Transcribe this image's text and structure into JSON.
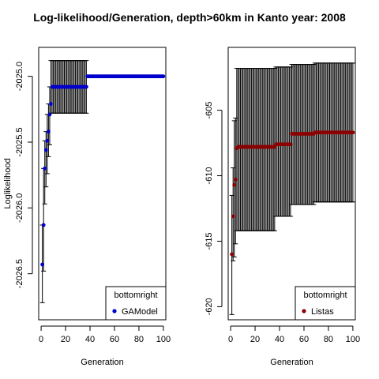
{
  "title": "Log-likelihood/Generation, depth>60km in Kanto year: 2008",
  "chart_data": [
    {
      "type": "scatter",
      "xlabel": "Generation",
      "ylabel": "Loglikelihood",
      "xlim": [
        -2,
        102
      ],
      "ylim": [
        -2026.85,
        -2024.78
      ],
      "xticks": [
        0,
        20,
        40,
        60,
        80,
        100
      ],
      "yticks": [
        -2026.5,
        -2026.0,
        -2025.5,
        -2025.0
      ],
      "ytick_labels": [
        "-2026.5",
        "-2026.0",
        "-2025.5",
        "-2025.0"
      ],
      "legend": {
        "position": "bottomright",
        "title": "bottomright",
        "entries": [
          "GAModel"
        ]
      },
      "series": [
        {
          "name": "GAModel",
          "color": "#0000cd",
          "x": [
            1,
            2,
            3,
            4,
            5,
            6,
            7,
            8,
            9,
            10,
            11,
            12,
            13,
            14,
            15,
            16,
            17,
            18,
            19,
            20,
            21,
            22,
            23,
            24,
            25,
            26,
            27,
            28,
            29,
            30,
            31,
            32,
            33,
            34,
            35,
            36,
            37,
            38,
            39,
            40,
            41,
            42,
            43,
            44,
            45,
            46,
            47,
            48,
            49,
            50,
            51,
            52,
            53,
            54,
            55,
            56,
            57,
            58,
            59,
            60,
            61,
            62,
            63,
            64,
            65,
            66,
            67,
            68,
            69,
            70,
            71,
            72,
            73,
            74,
            75,
            76,
            77,
            78,
            79,
            80,
            81,
            82,
            83,
            84,
            85,
            86,
            87,
            88,
            89,
            90,
            91,
            92,
            93,
            94,
            95,
            96,
            97,
            98,
            99,
            100
          ],
          "y": [
            -2026.43,
            -2026.13,
            -2025.7,
            -2025.56,
            -2025.49,
            -2025.42,
            -2025.29,
            -2025.21,
            -2025.08,
            -2025.08,
            -2025.08,
            -2025.08,
            -2025.08,
            -2025.08,
            -2025.08,
            -2025.08,
            -2025.08,
            -2025.08,
            -2025.08,
            -2025.08,
            -2025.08,
            -2025.08,
            -2025.08,
            -2025.08,
            -2025.08,
            -2025.08,
            -2025.08,
            -2025.08,
            -2025.08,
            -2025.08,
            -2025.08,
            -2025.08,
            -2025.08,
            -2025.08,
            -2025.08,
            -2025.08,
            -2025.08,
            -2025.0,
            -2025.0,
            -2025.0,
            -2025.0,
            -2025.0,
            -2025.0,
            -2025.0,
            -2025.0,
            -2025.0,
            -2025.0,
            -2025.0,
            -2025.0,
            -2025.0,
            -2025.0,
            -2025.0,
            -2025.0,
            -2025.0,
            -2025.0,
            -2025.0,
            -2025.0,
            -2025.0,
            -2025.0,
            -2025.0,
            -2025.0,
            -2025.0,
            -2025.0,
            -2025.0,
            -2025.0,
            -2025.0,
            -2025.0,
            -2025.0,
            -2025.0,
            -2025.0,
            -2025.0,
            -2025.0,
            -2025.0,
            -2025.0,
            -2025.0,
            -2025.0,
            -2025.0,
            -2025.0,
            -2025.0,
            -2025.0,
            -2025.0,
            -2025.0,
            -2025.0,
            -2025.0,
            -2025.0,
            -2025.0,
            -2025.0,
            -2025.0,
            -2025.0,
            -2025.0,
            -2025.0,
            -2025.0,
            -2025.0,
            -2025.0,
            -2025.0,
            -2025.0,
            -2025.0,
            -2025.0,
            -2025.0,
            -2025.0
          ],
          "err_low": [
            -2026.72,
            -2026.48,
            -2025.97,
            -2025.84,
            -2025.74,
            -2025.61,
            -2025.52,
            -2025.28,
            -2025.28,
            -2025.28,
            -2025.28,
            -2025.28,
            -2025.28,
            -2025.28,
            -2025.28,
            -2025.28,
            -2025.28,
            -2025.28,
            -2025.28,
            -2025.28,
            -2025.28,
            -2025.28,
            -2025.28,
            -2025.28,
            -2025.28,
            -2025.28,
            -2025.28,
            -2025.28,
            -2025.28,
            -2025.28,
            -2025.28,
            -2025.28,
            -2025.28,
            -2025.28,
            -2025.28,
            -2025.28,
            -2025.28,
            -2025.0,
            -2025.0,
            -2025.0,
            -2025.0,
            -2025.0,
            -2025.0,
            -2025.0,
            -2025.0,
            -2025.0,
            -2025.0,
            -2025.0,
            -2025.0,
            -2025.0,
            -2025.0,
            -2025.0,
            -2025.0,
            -2025.0,
            -2025.0,
            -2025.0,
            -2025.0,
            -2025.0,
            -2025.0,
            -2025.0,
            -2025.0,
            -2025.0,
            -2025.0,
            -2025.0,
            -2025.0,
            -2025.0,
            -2025.0,
            -2025.0,
            -2025.0,
            -2025.0,
            -2025.0,
            -2025.0,
            -2025.0,
            -2025.0,
            -2025.0,
            -2025.0,
            -2025.0,
            -2025.0,
            -2025.0,
            -2025.0,
            -2025.0,
            -2025.0,
            -2025.0,
            -2025.0,
            -2025.0,
            -2025.0,
            -2025.0,
            -2025.0,
            -2025.0,
            -2025.0,
            -2025.0,
            -2025.0,
            -2025.0,
            -2025.0,
            -2025.0,
            -2025.0,
            -2025.0,
            -2025.0,
            -2025.0,
            -2025.0
          ],
          "err_high": [
            -2026.13,
            -2025.7,
            -2025.49,
            -2025.42,
            -2025.29,
            -2025.21,
            -2025.08,
            -2024.88,
            -2024.88,
            -2024.88,
            -2024.88,
            -2024.88,
            -2024.88,
            -2024.88,
            -2024.88,
            -2024.88,
            -2024.88,
            -2024.88,
            -2024.88,
            -2024.88,
            -2024.88,
            -2024.88,
            -2024.88,
            -2024.88,
            -2024.88,
            -2024.88,
            -2024.88,
            -2024.88,
            -2024.88,
            -2024.88,
            -2024.88,
            -2024.88,
            -2024.88,
            -2024.88,
            -2024.88,
            -2024.88,
            -2024.88,
            -2025.0,
            -2025.0,
            -2025.0,
            -2025.0,
            -2025.0,
            -2025.0,
            -2025.0,
            -2025.0,
            -2025.0,
            -2025.0,
            -2025.0,
            -2025.0,
            -2025.0,
            -2025.0,
            -2025.0,
            -2025.0,
            -2025.0,
            -2025.0,
            -2025.0,
            -2025.0,
            -2025.0,
            -2025.0,
            -2025.0,
            -2025.0,
            -2025.0,
            -2025.0,
            -2025.0,
            -2025.0,
            -2025.0,
            -2025.0,
            -2025.0,
            -2025.0,
            -2025.0,
            -2025.0,
            -2025.0,
            -2025.0,
            -2025.0,
            -2025.0,
            -2025.0,
            -2025.0,
            -2025.0,
            -2025.0,
            -2025.0,
            -2025.0,
            -2025.0,
            -2025.0,
            -2025.0,
            -2025.0,
            -2025.0,
            -2025.0,
            -2025.0,
            -2025.0,
            -2025.0,
            -2025.0,
            -2025.0,
            -2025.0,
            -2025.0,
            -2025.0,
            -2025.0,
            -2025.0,
            -2025.0,
            -2025.0,
            -2025.0
          ]
        }
      ]
    },
    {
      "type": "scatter",
      "xlabel": "Generation",
      "ylabel": "",
      "xlim": [
        -2,
        102
      ],
      "ylim": [
        -621.0,
        -600.2
      ],
      "xticks": [
        0,
        20,
        40,
        60,
        80,
        100
      ],
      "yticks": [
        -620,
        -615,
        -610,
        -605
      ],
      "ytick_labels": [
        "-620",
        "-615",
        "-610",
        "-605"
      ],
      "legend": {
        "position": "bottomright",
        "title": "bottomright",
        "entries": [
          "Listas"
        ]
      },
      "series": [
        {
          "name": "Listas",
          "color": "#8b0000",
          "x": [
            1,
            2,
            3,
            4,
            5,
            6,
            7,
            8,
            9,
            10,
            11,
            12,
            13,
            14,
            15,
            16,
            17,
            18,
            19,
            20,
            21,
            22,
            23,
            24,
            25,
            26,
            27,
            28,
            29,
            30,
            31,
            32,
            33,
            34,
            35,
            36,
            37,
            38,
            39,
            40,
            41,
            42,
            43,
            44,
            45,
            46,
            47,
            48,
            49,
            50,
            51,
            52,
            53,
            54,
            55,
            56,
            57,
            58,
            59,
            60,
            61,
            62,
            63,
            64,
            65,
            66,
            67,
            68,
            69,
            70,
            71,
            72,
            73,
            74,
            75,
            76,
            77,
            78,
            79,
            80,
            81,
            82,
            83,
            84,
            85,
            86,
            87,
            88,
            89,
            90,
            91,
            92,
            93,
            94,
            95,
            96,
            97,
            98,
            99,
            100
          ],
          "y": [
            -616.0,
            -613.1,
            -610.7,
            -610.3,
            -607.9,
            -607.8,
            -607.8,
            -607.8,
            -607.8,
            -607.8,
            -607.8,
            -607.8,
            -607.8,
            -607.8,
            -607.8,
            -607.8,
            -607.8,
            -607.8,
            -607.8,
            -607.8,
            -607.8,
            -607.8,
            -607.8,
            -607.8,
            -607.8,
            -607.8,
            -607.8,
            -607.8,
            -607.8,
            -607.8,
            -607.8,
            -607.8,
            -607.8,
            -607.8,
            -607.8,
            -607.8,
            -607.6,
            -607.6,
            -607.6,
            -607.6,
            -607.6,
            -607.6,
            -607.6,
            -607.6,
            -607.6,
            -607.6,
            -607.6,
            -607.6,
            -607.6,
            -606.8,
            -606.8,
            -606.8,
            -606.8,
            -606.8,
            -606.8,
            -606.8,
            -606.8,
            -606.8,
            -606.8,
            -606.8,
            -606.8,
            -606.8,
            -606.8,
            -606.8,
            -606.8,
            -606.8,
            -606.8,
            -606.8,
            -606.7,
            -606.7,
            -606.7,
            -606.7,
            -606.7,
            -606.7,
            -606.7,
            -606.7,
            -606.7,
            -606.7,
            -606.7,
            -606.7,
            -606.7,
            -606.7,
            -606.7,
            -606.7,
            -606.7,
            -606.7,
            -606.7,
            -606.7,
            -606.7,
            -606.7,
            -606.7,
            -606.7,
            -606.7,
            -606.7,
            -606.7,
            -606.7,
            -606.7,
            -606.7,
            -606.7,
            -606.7
          ],
          "err_low": [
            -620.6,
            -616.5,
            -616.2,
            -615.2,
            -614.2,
            -614.2,
            -614.2,
            -614.2,
            -614.2,
            -614.2,
            -614.2,
            -614.2,
            -614.2,
            -614.2,
            -614.2,
            -614.2,
            -614.2,
            -614.2,
            -614.2,
            -614.2,
            -614.2,
            -614.2,
            -614.2,
            -614.2,
            -614.2,
            -614.2,
            -614.2,
            -614.2,
            -614.2,
            -614.2,
            -614.2,
            -614.2,
            -614.2,
            -614.2,
            -614.2,
            -614.2,
            -613.1,
            -613.1,
            -613.1,
            -613.1,
            -613.1,
            -613.1,
            -613.1,
            -613.1,
            -613.1,
            -613.1,
            -613.1,
            -613.1,
            -613.1,
            -612.2,
            -612.2,
            -612.2,
            -612.2,
            -612.2,
            -612.2,
            -612.2,
            -612.2,
            -612.2,
            -612.2,
            -612.2,
            -612.2,
            -612.2,
            -612.2,
            -612.2,
            -612.2,
            -612.2,
            -612.2,
            -612.2,
            -612.0,
            -612.0,
            -612.0,
            -612.0,
            -612.0,
            -612.0,
            -612.0,
            -612.0,
            -612.0,
            -612.0,
            -612.0,
            -612.0,
            -612.0,
            -612.0,
            -612.0,
            -612.0,
            -612.0,
            -612.0,
            -612.0,
            -612.0,
            -612.0,
            -612.0,
            -612.0,
            -612.0,
            -612.0,
            -612.0,
            -612.0,
            -612.0,
            -612.0,
            -612.0,
            -612.0,
            -612.0
          ],
          "err_high": [
            -611.5,
            -609.4,
            -605.8,
            -605.6,
            -601.8,
            -601.8,
            -601.8,
            -601.8,
            -601.8,
            -601.8,
            -601.8,
            -601.8,
            -601.8,
            -601.8,
            -601.8,
            -601.8,
            -601.8,
            -601.8,
            -601.8,
            -601.8,
            -601.8,
            -601.8,
            -601.8,
            -601.8,
            -601.8,
            -601.8,
            -601.8,
            -601.8,
            -601.8,
            -601.8,
            -601.8,
            -601.8,
            -601.8,
            -601.8,
            -601.8,
            -601.8,
            -601.7,
            -601.7,
            -601.7,
            -601.7,
            -601.7,
            -601.7,
            -601.7,
            -601.7,
            -601.7,
            -601.7,
            -601.7,
            -601.7,
            -601.7,
            -601.5,
            -601.5,
            -601.5,
            -601.5,
            -601.5,
            -601.5,
            -601.5,
            -601.5,
            -601.5,
            -601.5,
            -601.5,
            -601.5,
            -601.5,
            -601.5,
            -601.5,
            -601.5,
            -601.5,
            -601.5,
            -601.5,
            -601.4,
            -601.4,
            -601.4,
            -601.4,
            -601.4,
            -601.4,
            -601.4,
            -601.4,
            -601.4,
            -601.4,
            -601.4,
            -601.4,
            -601.4,
            -601.4,
            -601.4,
            -601.4,
            -601.4,
            -601.4,
            -601.4,
            -601.4,
            -601.4,
            -601.4,
            -601.4,
            -601.4,
            -601.4,
            -601.4,
            -601.4,
            -601.4,
            -601.4,
            -601.4,
            -601.4,
            -601.4
          ]
        }
      ]
    }
  ]
}
